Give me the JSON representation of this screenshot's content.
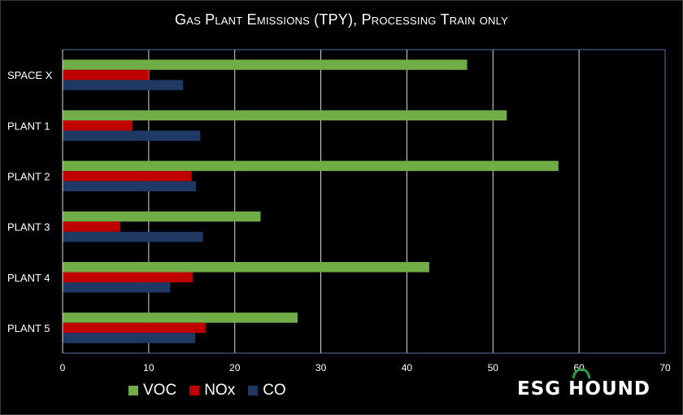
{
  "chart_data": {
    "type": "bar",
    "orientation": "horizontal",
    "title": "Gas Plant Emissions (TPY), Processing Train only",
    "categories": [
      "SPACE X",
      "PLANT 1",
      "PLANT 2",
      "PLANT 3",
      "PLANT 4",
      "PLANT 5"
    ],
    "series": [
      {
        "name": "VOC",
        "color": "#70ad47",
        "values": [
          47.0,
          51.6,
          57.6,
          23.0,
          42.6,
          27.3
        ]
      },
      {
        "name": "NOx",
        "color": "#c00000",
        "values": [
          10.0,
          8.1,
          15.0,
          6.7,
          15.1,
          16.6
        ]
      },
      {
        "name": "CO",
        "color": "#203864",
        "values": [
          14.0,
          16.0,
          15.5,
          16.3,
          12.5,
          15.4
        ]
      }
    ],
    "xlim": [
      0,
      70
    ],
    "xticks": [
      0,
      10,
      20,
      30,
      40,
      50,
      60,
      70
    ],
    "grid": "vertical",
    "legend": "bottom-left"
  },
  "branding": {
    "logo_text": "ESG HOUND"
  }
}
